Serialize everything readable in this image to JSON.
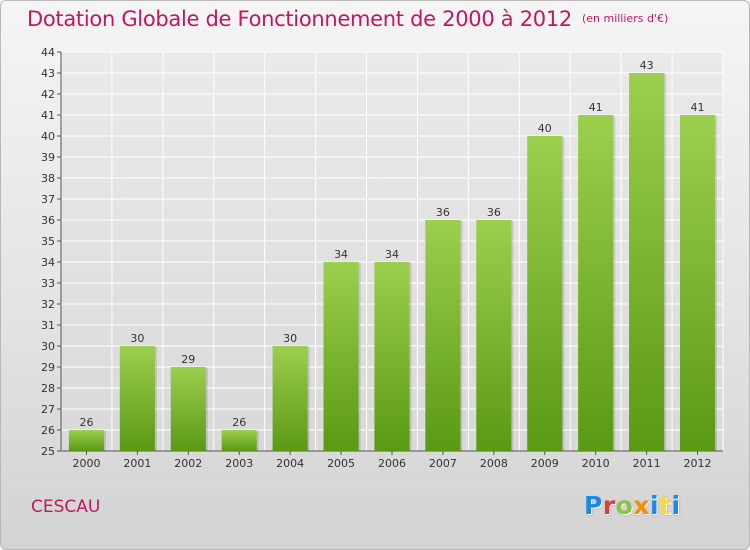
{
  "title": "Dotation Globale de Fonctionnement de 2000 à 2012",
  "subtitle": "(en milliers d'€)",
  "commune": "CESCAU",
  "logo": {
    "text": "Proxiti",
    "letter_colors": [
      "#1e88e5",
      "#e53935",
      "#8bc34a",
      "#fb8c00",
      "#1e88e5",
      "#fdd835",
      "#1e88e5"
    ]
  },
  "colors": {
    "bar_top": "#9ccf4e",
    "bar_bottom": "#5a9914",
    "title": "#c2185b",
    "grid": "#ffffff"
  },
  "chart_data": {
    "type": "bar",
    "categories": [
      "2000",
      "2001",
      "2002",
      "2003",
      "2004",
      "2005",
      "2006",
      "2007",
      "2008",
      "2009",
      "2010",
      "2011",
      "2012"
    ],
    "values": [
      26,
      30,
      29,
      26,
      30,
      34,
      34,
      36,
      36,
      40,
      41,
      43,
      41
    ],
    "xlabel": "",
    "ylabel": "",
    "ylim": [
      25,
      44
    ],
    "yticks": [
      25,
      26,
      27,
      28,
      29,
      30,
      31,
      32,
      33,
      34,
      35,
      36,
      37,
      38,
      39,
      40,
      41,
      42,
      43,
      44
    ],
    "grid": true,
    "data_labels": true,
    "legend": "none"
  }
}
